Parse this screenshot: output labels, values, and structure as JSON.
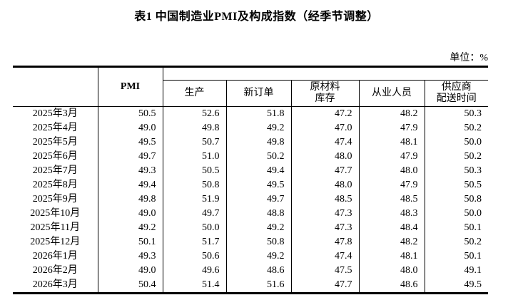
{
  "page": {
    "title": "表1 中国制造业PMI及构成指数（经季节调整）",
    "unit_label": "单位：%"
  },
  "table": {
    "pmi_header": "PMI",
    "sub_headers": [
      "生产",
      "新订单",
      "原材料\n库存",
      "从业人员",
      "供应商\n配送时间"
    ],
    "rows": [
      {
        "month": "2025年3月",
        "values": [
          "50.5",
          "52.6",
          "51.8",
          "47.2",
          "48.2",
          "50.3"
        ]
      },
      {
        "month": "2025年4月",
        "values": [
          "49.0",
          "49.8",
          "49.2",
          "47.0",
          "47.9",
          "50.2"
        ]
      },
      {
        "month": "2025年5月",
        "values": [
          "49.5",
          "50.7",
          "49.8",
          "47.4",
          "48.1",
          "50.0"
        ]
      },
      {
        "month": "2025年6月",
        "values": [
          "49.7",
          "51.0",
          "50.2",
          "48.0",
          "47.9",
          "50.2"
        ]
      },
      {
        "month": "2025年7月",
        "values": [
          "49.3",
          "50.5",
          "49.4",
          "47.7",
          "48.0",
          "50.3"
        ]
      },
      {
        "month": "2025年8月",
        "values": [
          "49.4",
          "50.8",
          "49.5",
          "48.0",
          "47.9",
          "50.5"
        ]
      },
      {
        "month": "2025年9月",
        "values": [
          "49.8",
          "51.9",
          "49.7",
          "48.5",
          "48.5",
          "50.8"
        ]
      },
      {
        "month": "2025年10月",
        "values": [
          "49.0",
          "49.7",
          "48.8",
          "47.3",
          "48.3",
          "50.0"
        ]
      },
      {
        "month": "2025年11月",
        "values": [
          "49.2",
          "50.0",
          "49.2",
          "47.3",
          "48.4",
          "50.1"
        ]
      },
      {
        "month": "2025年12月",
        "values": [
          "50.1",
          "51.7",
          "50.8",
          "47.8",
          "48.2",
          "50.2"
        ]
      },
      {
        "month": "2026年1月",
        "values": [
          "49.3",
          "50.6",
          "49.2",
          "47.4",
          "48.1",
          "50.1"
        ]
      },
      {
        "month": "2026年2月",
        "values": [
          "49.0",
          "49.6",
          "48.6",
          "47.5",
          "48.0",
          "49.1"
        ]
      },
      {
        "month": "2026年3月",
        "values": [
          "50.4",
          "51.4",
          "51.6",
          "47.7",
          "48.6",
          "49.5"
        ]
      }
    ]
  },
  "colors": {
    "text": "#000000",
    "background": "#ffffff",
    "border": "#000000"
  }
}
